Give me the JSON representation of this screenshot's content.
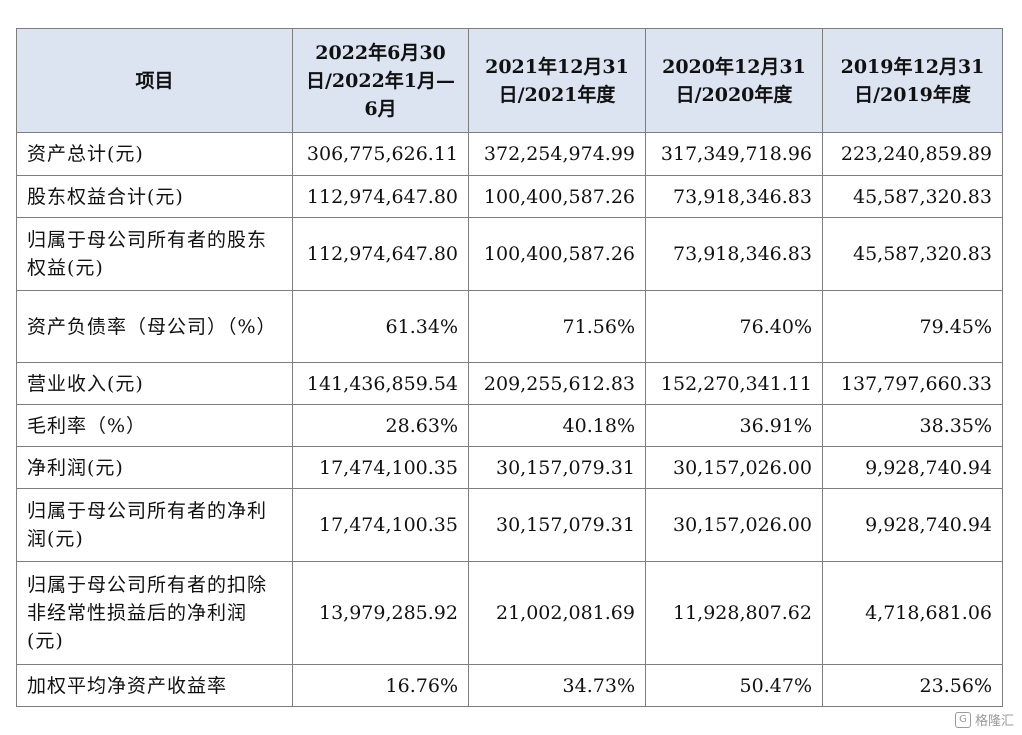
{
  "table": {
    "headers": [
      "项目",
      "2022年6月30日/2022年1月—6月",
      "2021年12月31日/2021年度",
      "2020年12月31日/2020年度",
      "2019年12月31日/2019年度"
    ],
    "rows": [
      {
        "label": "资产总计(元)",
        "values": [
          "306,775,626.11",
          "372,254,974.99",
          "317,349,718.96",
          "223,240,859.89"
        ]
      },
      {
        "label": "股东权益合计(元)",
        "values": [
          "112,974,647.80",
          "100,400,587.26",
          "73,918,346.83",
          "45,587,320.83"
        ]
      },
      {
        "label": "归属于母公司所有者的股东权益(元)",
        "values": [
          "112,974,647.80",
          "100,400,587.26",
          "73,918,346.83",
          "45,587,320.83"
        ]
      },
      {
        "label": "资产负债率（母公司）（%）",
        "values": [
          "61.34%",
          "71.56%",
          "76.40%",
          "79.45%"
        ]
      },
      {
        "label": "营业收入(元)",
        "values": [
          "141,436,859.54",
          "209,255,612.83",
          "152,270,341.11",
          "137,797,660.33"
        ]
      },
      {
        "label": "毛利率（%）",
        "values": [
          "28.63%",
          "40.18%",
          "36.91%",
          "38.35%"
        ]
      },
      {
        "label": "净利润(元)",
        "values": [
          "17,474,100.35",
          "30,157,079.31",
          "30,157,026.00",
          "9,928,740.94"
        ]
      },
      {
        "label": "归属于母公司所有者的净利润(元)",
        "values": [
          "17,474,100.35",
          "30,157,079.31",
          "30,157,026.00",
          "9,928,740.94"
        ]
      },
      {
        "label": "归属于母公司所有者的扣除非经常性损益后的净利润(元)",
        "values": [
          "13,979,285.92",
          "21,002,081.69",
          "11,928,807.62",
          "4,718,681.06"
        ]
      },
      {
        "label": "加权平均净资产收益率",
        "values": [
          "16.76%",
          "34.73%",
          "50.47%",
          "23.56%"
        ]
      }
    ]
  },
  "watermark": {
    "text": "格隆汇"
  }
}
